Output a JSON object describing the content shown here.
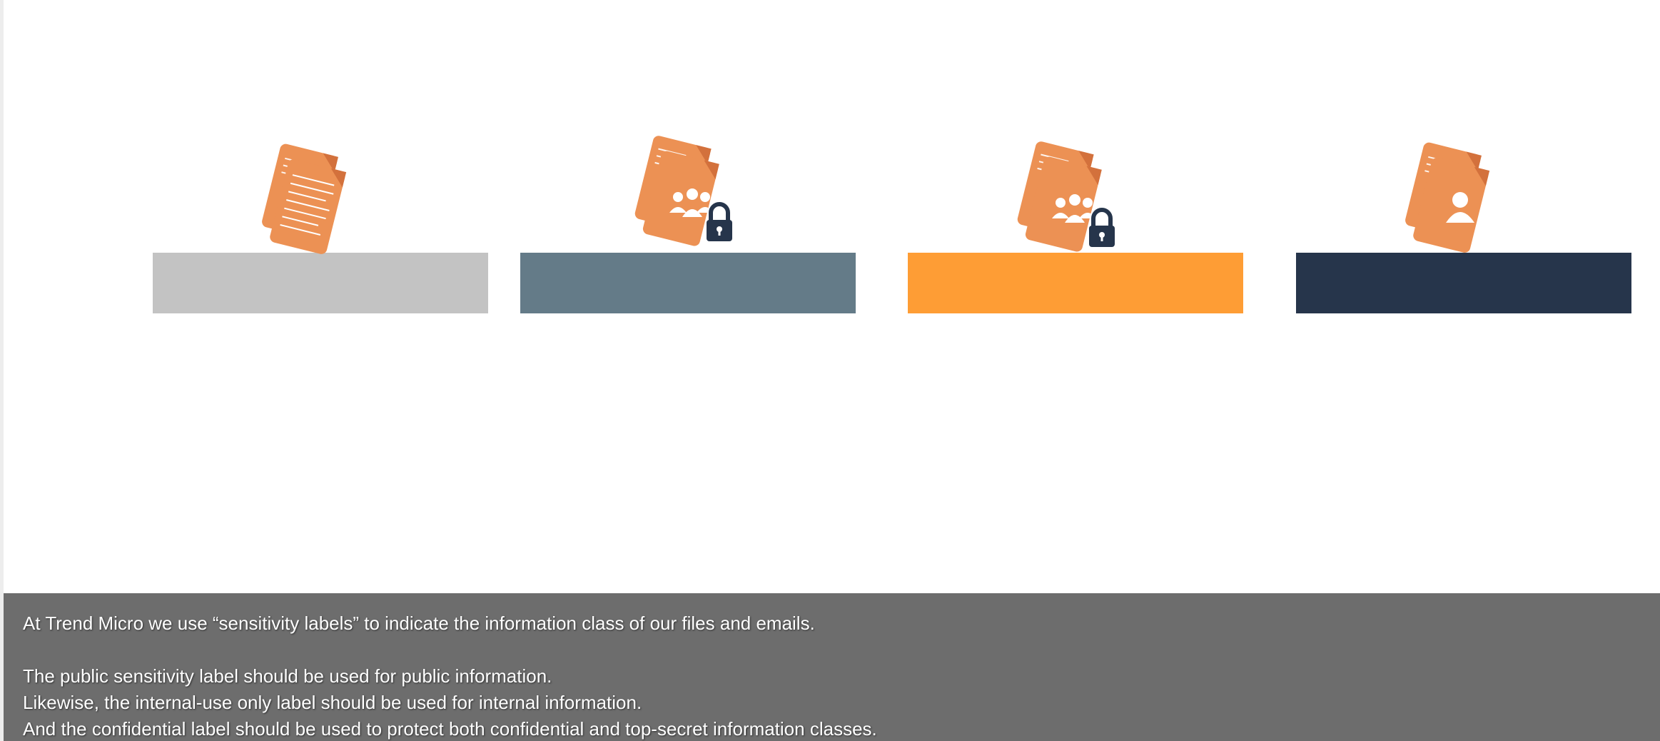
{
  "slide": {
    "labels": [
      {
        "name": "public",
        "color": "#c3c3c3",
        "icon": "document-stack-icon"
      },
      {
        "name": "internal-use-only",
        "color": "#647b88",
        "icon": "document-group-lock-icon"
      },
      {
        "name": "confidential",
        "color": "#fe9d35",
        "icon": "document-group-lock-icon"
      },
      {
        "name": "top-secret",
        "color": "#26354b",
        "icon": "document-person-icon"
      }
    ],
    "icon_colors": {
      "document": "#ec9154",
      "document_fold": "#d3713c",
      "lock": "#26354b"
    }
  },
  "caption": {
    "background": "#6d6d6d",
    "line1": "At Trend Micro we use “sensitivity labels” to indicate the information class of our files and emails.",
    "line2": "The public sensitivity label should be used for public information.",
    "line3": "Likewise, the internal-use only label should be used for internal information.",
    "line4": "And the confidential label should be used to protect both confidential and top-secret information classes."
  }
}
